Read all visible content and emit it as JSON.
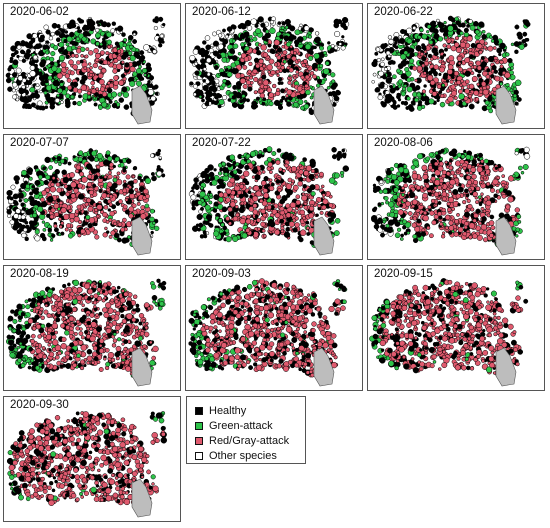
{
  "panels": [
    {
      "date": "2020-06-02",
      "green_frac": 0.12,
      "red_frac": 0.07
    },
    {
      "date": "2020-06-12",
      "green_frac": 0.16,
      "red_frac": 0.1
    },
    {
      "date": "2020-06-22",
      "green_frac": 0.17,
      "red_frac": 0.16
    },
    {
      "date": "2020-07-07",
      "green_frac": 0.13,
      "red_frac": 0.21
    },
    {
      "date": "2020-07-22",
      "green_frac": 0.14,
      "red_frac": 0.24
    },
    {
      "date": "2020-08-06",
      "green_frac": 0.14,
      "red_frac": 0.27
    },
    {
      "date": "2020-08-19",
      "green_frac": 0.18,
      "red_frac": 0.34
    },
    {
      "date": "2020-09-03",
      "green_frac": 0.18,
      "red_frac": 0.38
    },
    {
      "date": "2020-09-15",
      "green_frac": 0.2,
      "red_frac": 0.42
    },
    {
      "date": "2020-09-30",
      "green_frac": 0.18,
      "red_frac": 0.46
    }
  ],
  "legend": [
    {
      "label": "Healthy",
      "color": "#000000"
    },
    {
      "label": "Green-attack",
      "color": "#2ec34a"
    },
    {
      "label": "Red/Gray-attack",
      "color": "#e05a6e"
    },
    {
      "label": "Other species",
      "color": "#ffffff"
    }
  ],
  "lake_color": "#bdbdbd"
}
